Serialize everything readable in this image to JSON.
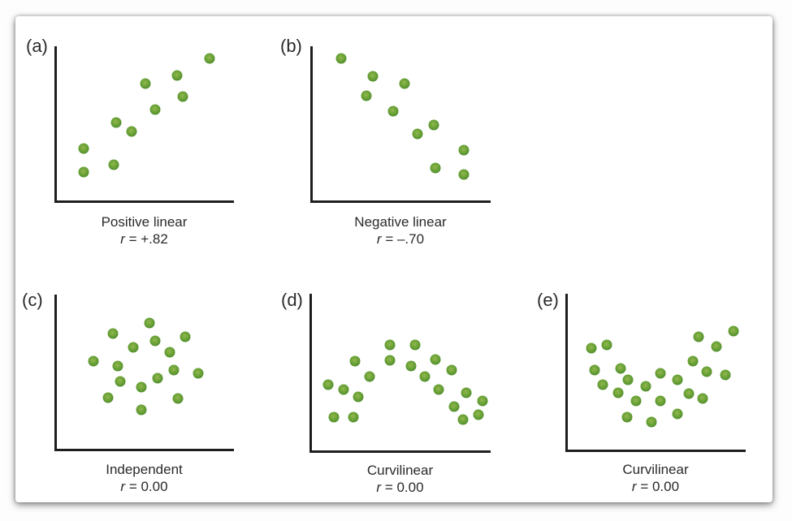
{
  "style": {
    "page-bg": "#ffffff",
    "axis-color": "#1e1e1e",
    "text-color": "#2b2a2a",
    "dot-center": "#93b84e",
    "dot-mid": "#67a035",
    "dot-edge": "#3c7c27"
  },
  "chart_data": [
    {
      "type": "scatter",
      "panel_letter": "(a)",
      "title": "Positive linear",
      "r_symbol": "r",
      "r_rest": " = +.82",
      "r_annotation": "r = +.82",
      "xlim": [
        0,
        1
      ],
      "ylim": [
        0,
        1
      ],
      "grid": false,
      "legend": false,
      "axis_ticks": "none",
      "x": [
        0.151,
        0.151,
        0.32,
        0.333,
        0.42,
        0.498,
        0.557,
        0.68,
        0.712,
        0.863
      ],
      "y": [
        0.183,
        0.335,
        0.23,
        0.503,
        0.445,
        0.759,
        0.592,
        0.812,
        0.675,
        0.921
      ]
    },
    {
      "type": "scatter",
      "panel_letter": "(b)",
      "title": "Negative linear",
      "r_symbol": "r",
      "r_rest": " = –.70",
      "r_annotation": "r = –.70",
      "xlim": [
        0,
        1
      ],
      "ylim": [
        0,
        1
      ],
      "grid": false,
      "legend": false,
      "axis_ticks": "none",
      "x": [
        0.158,
        0.303,
        0.339,
        0.452,
        0.516,
        0.588,
        0.679,
        0.688,
        0.851,
        0.851
      ],
      "y": [
        0.922,
        0.677,
        0.807,
        0.578,
        0.76,
        0.432,
        0.49,
        0.208,
        0.328,
        0.167
      ]
    },
    {
      "type": "scatter",
      "panel_letter": "(c)",
      "title": "Independent",
      "r_symbol": "r",
      "r_rest": " = 0.00",
      "r_annotation": "r = 0.00",
      "xlim": [
        0,
        1
      ],
      "ylim": [
        0,
        1
      ],
      "grid": false,
      "legend": false,
      "axis_ticks": "none",
      "x": [
        0.205,
        0.288,
        0.315,
        0.342,
        0.356,
        0.429,
        0.479,
        0.479,
        0.521,
        0.557,
        0.571,
        0.639,
        0.662,
        0.685,
        0.726,
        0.799
      ],
      "y": [
        0.568,
        0.333,
        0.75,
        0.536,
        0.438,
        0.656,
        0.401,
        0.255,
        0.818,
        0.698,
        0.458,
        0.625,
        0.51,
        0.328,
        0.724,
        0.49
      ]
    },
    {
      "type": "scatter",
      "panel_letter": "(d)",
      "title": "Curvilinear",
      "r_symbol": "r",
      "r_rest": " = 0.00",
      "r_annotation": "r = 0.00",
      "xlim": [
        0,
        1
      ],
      "ylim": [
        0,
        1
      ],
      "grid": false,
      "legend": false,
      "axis_ticks": "none",
      "x": [
        0.09,
        0.122,
        0.176,
        0.234,
        0.243,
        0.257,
        0.324,
        0.437,
        0.437,
        0.554,
        0.577,
        0.631,
        0.689,
        0.707,
        0.784,
        0.797,
        0.847,
        0.865,
        0.932,
        0.955
      ],
      "y": [
        0.421,
        0.21,
        0.39,
        0.215,
        0.569,
        0.344,
        0.472,
        0.672,
        0.574,
        0.538,
        0.672,
        0.472,
        0.579,
        0.39,
        0.513,
        0.282,
        0.195,
        0.369,
        0.226,
        0.318
      ]
    },
    {
      "type": "scatter",
      "panel_letter": "(e)",
      "title": "Curvilinear",
      "r_symbol": "r",
      "r_rest": " = 0.00",
      "r_annotation": "r = 0.00",
      "xlim": [
        0,
        1
      ],
      "ylim": [
        0,
        1
      ],
      "grid": false,
      "legend": false,
      "axis_ticks": "none",
      "x": [
        0.131,
        0.149,
        0.195,
        0.217,
        0.281,
        0.299,
        0.335,
        0.339,
        0.385,
        0.439,
        0.471,
        0.52,
        0.52,
        0.615,
        0.615,
        0.679,
        0.701,
        0.733,
        0.756,
        0.783,
        0.837,
        0.887,
        0.932
      ],
      "y": [
        0.649,
        0.51,
        0.418,
        0.67,
        0.366,
        0.521,
        0.206,
        0.448,
        0.314,
        0.407,
        0.175,
        0.49,
        0.314,
        0.448,
        0.227,
        0.361,
        0.567,
        0.722,
        0.33,
        0.5,
        0.66,
        0.479,
        0.758
      ]
    }
  ]
}
